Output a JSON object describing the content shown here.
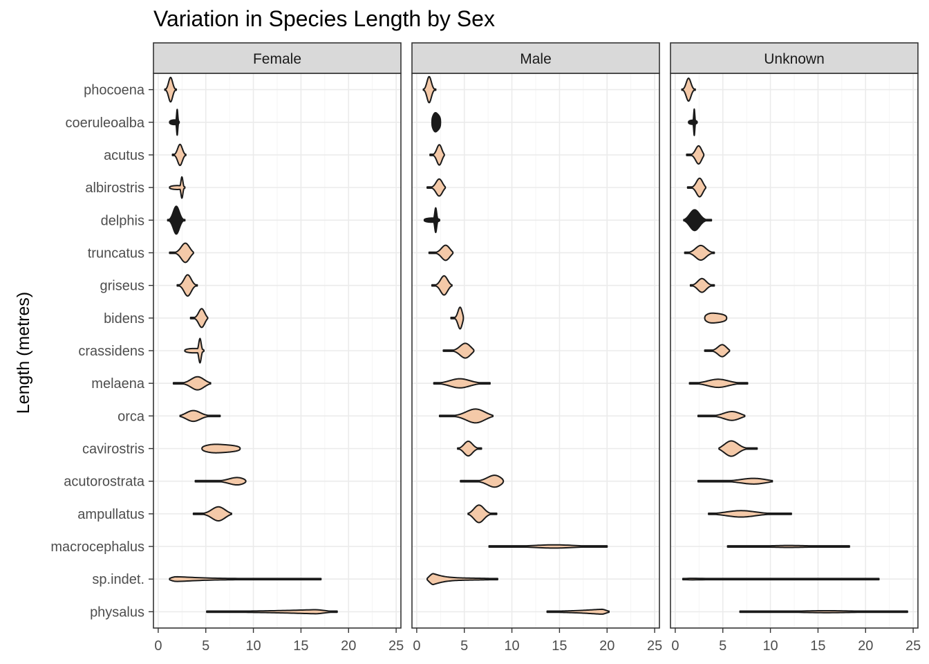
{
  "chart_data": {
    "type": "violin",
    "title": "Variation in Species Length by Sex",
    "xlabel": "",
    "ylabel": "Length (metres)",
    "xlim": [
      -0.5,
      25.5
    ],
    "xticks": [
      0,
      5,
      10,
      15,
      20,
      25
    ],
    "grid": true,
    "legend": "none",
    "fill_color": "#f4c9a8",
    "dense_fill_color": "#1a1a1a",
    "border_color": "#333333",
    "strip_color": "#d9d9d9",
    "facets": [
      "Female",
      "Male",
      "Unknown"
    ],
    "categories": [
      "phocoena",
      "coeruleoalba",
      "acutus",
      "albirostris",
      "delphis",
      "truncatus",
      "griseus",
      "bidens",
      "crassidens",
      "melaena",
      "orca",
      "cavirostris",
      "acutorostrata",
      "ampullatus",
      "macrocephalus",
      "sp.indet.",
      "physalus"
    ],
    "series": [
      {
        "name": "Female",
        "violins": [
          {
            "category": "phocoena",
            "min": 0.7,
            "max": 1.9,
            "peak": 1.3,
            "width": 0.75,
            "shape": "bell"
          },
          {
            "category": "coeruleoalba",
            "min": 1.2,
            "max": 2.2,
            "peak": 2.0,
            "width": 0.95,
            "shape": "spike",
            "dense": true
          },
          {
            "category": "acutus",
            "min": 1.5,
            "max": 2.9,
            "peak": 2.3,
            "width": 0.65,
            "shape": "bell"
          },
          {
            "category": "albirostris",
            "min": 1.2,
            "max": 2.8,
            "peak": 2.5,
            "width": 0.8,
            "shape": "spike"
          },
          {
            "category": "delphis",
            "min": 1.0,
            "max": 2.8,
            "peak": 1.9,
            "width": 0.85,
            "shape": "bell",
            "dense": true
          },
          {
            "category": "truncatus",
            "min": 1.2,
            "max": 3.7,
            "peak": 2.9,
            "width": 0.62,
            "shape": "bell"
          },
          {
            "category": "griseus",
            "min": 2.0,
            "max": 4.1,
            "peak": 3.1,
            "width": 0.65,
            "shape": "bell"
          },
          {
            "category": "bidens",
            "min": 3.4,
            "max": 5.2,
            "peak": 4.6,
            "width": 0.6,
            "shape": "bell"
          },
          {
            "category": "crassidens",
            "min": 2.8,
            "max": 4.8,
            "peak": 4.4,
            "width": 0.9,
            "shape": "spike"
          },
          {
            "category": "melaena",
            "min": 1.6,
            "max": 5.5,
            "peak": 4.2,
            "width": 0.42,
            "shape": "bell"
          },
          {
            "category": "orca",
            "min": 2.3,
            "max": 6.5,
            "peak": 3.6,
            "width": 0.35,
            "shape": "bell"
          },
          {
            "category": "cavirostris",
            "min": 4.6,
            "max": 8.6,
            "peak": 5.5,
            "width": 0.28,
            "shape": "flat"
          },
          {
            "category": "acutorostrata",
            "min": 3.9,
            "max": 9.2,
            "peak": 8.6,
            "width": 0.3,
            "shape": "bell"
          },
          {
            "category": "ampullatus",
            "min": 3.7,
            "max": 7.7,
            "peak": 6.4,
            "width": 0.45,
            "shape": "bell"
          },
          {
            "category": "sp.indet.",
            "min": 1.2,
            "max": 17.1,
            "peak": 1.8,
            "width": 0.3,
            "shape": "taper-right"
          },
          {
            "category": "physalus",
            "min": 5.1,
            "max": 18.8,
            "peak": 16.5,
            "width": 0.16,
            "shape": "taper-left"
          }
        ]
      },
      {
        "name": "Male",
        "violins": [
          {
            "category": "phocoena",
            "min": 0.7,
            "max": 2.0,
            "peak": 1.3,
            "width": 0.8,
            "shape": "bell"
          },
          {
            "category": "coeruleoalba",
            "min": 1.6,
            "max": 2.5,
            "peak": 1.9,
            "width": 0.6,
            "shape": "flat",
            "dense": true
          },
          {
            "category": "acutus",
            "min": 1.4,
            "max": 2.9,
            "peak": 2.4,
            "width": 0.65,
            "shape": "bell"
          },
          {
            "category": "albirostris",
            "min": 1.1,
            "max": 3.0,
            "peak": 2.4,
            "width": 0.55,
            "shape": "bell"
          },
          {
            "category": "delphis",
            "min": 0.8,
            "max": 2.4,
            "peak": 2.0,
            "width": 0.85,
            "shape": "spike",
            "dense": true
          },
          {
            "category": "truncatus",
            "min": 1.3,
            "max": 3.8,
            "peak": 3.1,
            "width": 0.5,
            "shape": "bell"
          },
          {
            "category": "griseus",
            "min": 1.6,
            "max": 3.7,
            "peak": 2.9,
            "width": 0.6,
            "shape": "bell"
          },
          {
            "category": "bidens",
            "min": 3.6,
            "max": 4.9,
            "peak": 4.6,
            "width": 0.75,
            "shape": "bell"
          },
          {
            "category": "crassidens",
            "min": 2.8,
            "max": 6.0,
            "peak": 5.2,
            "width": 0.5,
            "shape": "bell"
          },
          {
            "category": "melaena",
            "min": 1.8,
            "max": 7.7,
            "peak": 4.5,
            "width": 0.28,
            "shape": "bell"
          },
          {
            "category": "orca",
            "min": 2.4,
            "max": 8.0,
            "peak": 6.3,
            "width": 0.45,
            "shape": "bell"
          },
          {
            "category": "cavirostris",
            "min": 4.3,
            "max": 6.8,
            "peak": 5.4,
            "width": 0.45,
            "shape": "bell"
          },
          {
            "category": "acutorostrata",
            "min": 4.6,
            "max": 9.1,
            "peak": 8.4,
            "width": 0.45,
            "shape": "bell"
          },
          {
            "category": "ampullatus",
            "min": 5.4,
            "max": 8.4,
            "peak": 6.5,
            "width": 0.55,
            "shape": "bell"
          },
          {
            "category": "macrocephalus",
            "min": 7.6,
            "max": 20.0,
            "peak": 14.5,
            "width": 0.1,
            "shape": "bell"
          },
          {
            "category": "sp.indet.",
            "min": 1.1,
            "max": 8.5,
            "peak": 1.7,
            "width": 0.55,
            "shape": "taper-right"
          },
          {
            "category": "physalus",
            "min": 13.7,
            "max": 20.2,
            "peak": 19.5,
            "width": 0.22,
            "shape": "taper-left"
          }
        ]
      },
      {
        "name": "Unknown",
        "violins": [
          {
            "category": "phocoena",
            "min": 0.7,
            "max": 2.1,
            "peak": 1.4,
            "width": 0.7,
            "shape": "bell"
          },
          {
            "category": "coeruleoalba",
            "min": 1.4,
            "max": 2.3,
            "peak": 2.0,
            "width": 0.85,
            "shape": "spike",
            "dense": true
          },
          {
            "category": "acutus",
            "min": 1.2,
            "max": 3.0,
            "peak": 2.5,
            "width": 0.6,
            "shape": "bell"
          },
          {
            "category": "albirostris",
            "min": 1.3,
            "max": 3.2,
            "peak": 2.6,
            "width": 0.6,
            "shape": "bell"
          },
          {
            "category": "delphis",
            "min": 0.9,
            "max": 3.8,
            "peak": 2.0,
            "width": 0.65,
            "shape": "bell",
            "dense": true
          },
          {
            "category": "truncatus",
            "min": 1.0,
            "max": 4.1,
            "peak": 2.7,
            "width": 0.45,
            "shape": "bell"
          },
          {
            "category": "griseus",
            "min": 1.6,
            "max": 4.1,
            "peak": 2.8,
            "width": 0.42,
            "shape": "bell"
          },
          {
            "category": "bidens",
            "min": 3.1,
            "max": 5.4,
            "peak": 3.5,
            "width": 0.33,
            "shape": "flat"
          },
          {
            "category": "crassidens",
            "min": 3.1,
            "max": 5.7,
            "peak": 5.0,
            "width": 0.4,
            "shape": "bell"
          },
          {
            "category": "melaena",
            "min": 1.5,
            "max": 7.6,
            "peak": 4.5,
            "width": 0.25,
            "shape": "bell"
          },
          {
            "category": "orca",
            "min": 2.4,
            "max": 7.3,
            "peak": 6.1,
            "width": 0.3,
            "shape": "bell"
          },
          {
            "category": "cavirostris",
            "min": 4.6,
            "max": 8.6,
            "peak": 5.8,
            "width": 0.5,
            "shape": "bell"
          },
          {
            "category": "acutorostrata",
            "min": 2.4,
            "max": 10.2,
            "peak": 8.5,
            "width": 0.2,
            "shape": "bell"
          },
          {
            "category": "ampullatus",
            "min": 3.5,
            "max": 12.2,
            "peak": 6.8,
            "width": 0.2,
            "shape": "bell"
          },
          {
            "category": "macrocephalus",
            "min": 5.5,
            "max": 18.3,
            "peak": 12.0,
            "width": 0.06,
            "shape": "bell"
          },
          {
            "category": "sp.indet.",
            "min": 0.8,
            "max": 21.4,
            "peak": 1.5,
            "width": 0.1,
            "shape": "taper-right"
          },
          {
            "category": "physalus",
            "min": 6.8,
            "max": 24.4,
            "peak": 16.0,
            "width": 0.06,
            "shape": "bell"
          }
        ]
      }
    ]
  }
}
